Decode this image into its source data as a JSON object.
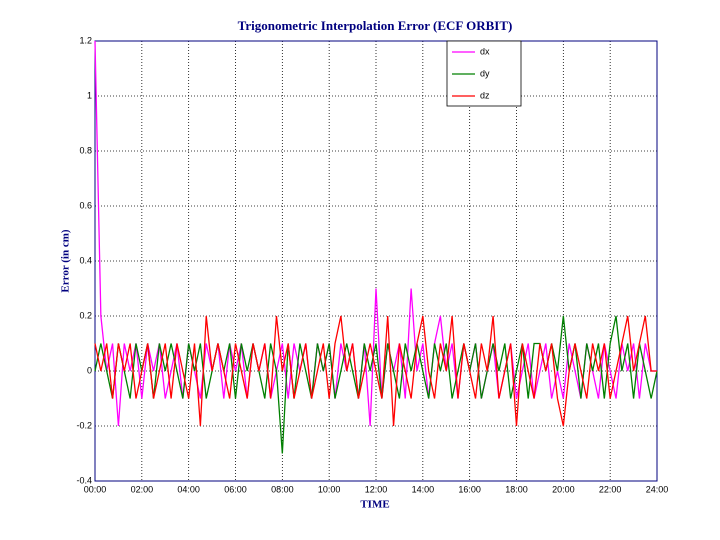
{
  "chart_data": {
    "type": "line",
    "title": "Trigonometric Interpolation Error (ECF ORBIT)",
    "xlabel": "TIME",
    "ylabel": "Error (in cm)",
    "x": [
      0,
      0.25,
      0.5,
      0.75,
      1,
      1.25,
      1.5,
      1.75,
      2,
      2.25,
      2.5,
      2.75,
      3,
      3.25,
      3.5,
      3.75,
      4,
      4.25,
      4.5,
      4.75,
      5,
      5.25,
      5.5,
      5.75,
      6,
      6.25,
      6.5,
      6.75,
      7,
      7.25,
      7.5,
      7.75,
      8,
      8.25,
      8.5,
      8.75,
      9,
      9.25,
      9.5,
      9.75,
      10,
      10.25,
      10.5,
      10.75,
      11,
      11.25,
      11.5,
      11.75,
      12,
      12.25,
      12.5,
      12.75,
      13,
      13.25,
      13.5,
      13.75,
      14,
      14.25,
      14.5,
      14.75,
      15,
      15.25,
      15.5,
      15.75,
      16,
      16.25,
      16.5,
      16.75,
      17,
      17.25,
      17.5,
      17.75,
      18,
      18.25,
      18.5,
      18.75,
      19,
      19.25,
      19.5,
      19.75,
      20,
      20.25,
      20.5,
      20.75,
      21,
      21.25,
      21.5,
      21.75,
      22,
      22.25,
      22.5,
      22.75,
      23,
      23.25,
      23.5,
      23.75,
      24
    ],
    "series": [
      {
        "name": "dx",
        "color": "#ff00ff",
        "values": [
          1.2,
          0.2,
          0,
          0.1,
          -0.2,
          0.1,
          0,
          0.1,
          -0.1,
          0.1,
          0,
          0.1,
          -0.1,
          0,
          0.1,
          -0.1,
          0.1,
          0,
          -0.1,
          0.1,
          0,
          0.1,
          -0.1,
          0.1,
          0,
          0.1,
          -0.1,
          0.1,
          0,
          0.1,
          -0.1,
          0,
          0.1,
          -0.1,
          0.1,
          0,
          0.1,
          -0.1,
          0.1,
          0,
          0.1,
          -0.1,
          0.1,
          0,
          0.1,
          -0.1,
          0.1,
          -0.2,
          0.3,
          -0.1,
          0.1,
          0,
          0.1,
          -0.1,
          0.3,
          0,
          0.1,
          -0.1,
          0.1,
          0.2,
          0,
          0.1,
          -0.1,
          0.1,
          0,
          0.1,
          -0.1,
          0,
          0.1,
          -0.1,
          0,
          0.1,
          -0.1,
          0,
          0.1,
          -0.1,
          0,
          0.1,
          -0.1,
          0,
          -0.1,
          0.1,
          0,
          -0.1,
          0.1,
          0,
          -0.1,
          0.1,
          0,
          -0.1,
          0.1,
          0,
          0.1,
          -0.1,
          0.1,
          0,
          0
        ]
      },
      {
        "name": "dy",
        "color": "#008000",
        "values": [
          0,
          0.1,
          0,
          -0.1,
          0.1,
          0,
          -0.1,
          0.1,
          0,
          0.1,
          -0.1,
          0.1,
          0,
          0.1,
          0,
          -0.1,
          0.1,
          0,
          0.1,
          -0.1,
          0,
          0.1,
          0,
          0.1,
          -0.1,
          0.1,
          0,
          0.1,
          0,
          -0.1,
          0.1,
          0,
          -0.3,
          0.1,
          -0.1,
          0.1,
          0,
          -0.1,
          0.1,
          0,
          0.1,
          -0.1,
          0,
          0.1,
          0,
          -0.1,
          0.1,
          0,
          0.1,
          -0.1,
          0.1,
          0,
          -0.1,
          0.1,
          0,
          0.1,
          0,
          -0.1,
          0.1,
          0,
          0.1,
          -0.1,
          0,
          0.1,
          0,
          0.1,
          -0.1,
          0,
          0.1,
          0,
          0.1,
          -0.1,
          0,
          0.1,
          -0.1,
          0.1,
          0.1,
          0,
          0.1,
          0,
          0.2,
          0,
          0.1,
          -0.1,
          0.1,
          0,
          0.1,
          -0.1,
          0.1,
          0.2,
          0,
          0.1,
          -0.1,
          0.1,
          0,
          -0.1,
          0
        ]
      },
      {
        "name": "dz",
        "color": "#ff0000",
        "values": [
          0.1,
          0,
          0.1,
          -0.1,
          0.1,
          0,
          0.1,
          -0.1,
          0,
          0.1,
          -0.1,
          0,
          0.1,
          -0.1,
          0.1,
          0,
          -0.1,
          0.1,
          -0.2,
          0.2,
          0,
          0.1,
          0,
          -0.1,
          0.1,
          0,
          -0.1,
          0.1,
          0,
          0.1,
          -0.1,
          0.2,
          0,
          0.1,
          -0.1,
          0,
          0.1,
          -0.1,
          0,
          0.1,
          -0.1,
          0.1,
          0.2,
          0,
          0.1,
          -0.1,
          0,
          0.1,
          0,
          -0.1,
          0.2,
          -0.2,
          0.1,
          0,
          -0.1,
          0.1,
          0.2,
          0,
          -0.1,
          0.1,
          0,
          0.2,
          -0.1,
          0.1,
          0,
          -0.1,
          0.1,
          0,
          0.2,
          -0.1,
          0,
          0.1,
          -0.2,
          0.1,
          0,
          -0.1,
          0.1,
          0,
          0.1,
          -0.1,
          -0.2,
          0,
          0.1,
          0,
          -0.1,
          0.1,
          0,
          0.1,
          -0.1,
          0,
          0.1,
          0.2,
          0,
          0.1,
          0.2,
          0,
          0
        ]
      }
    ],
    "xlim": [
      0,
      24
    ],
    "xticks": [
      {
        "value": 0,
        "label": "00:00"
      },
      {
        "value": 2,
        "label": "02:00"
      },
      {
        "value": 4,
        "label": "04:00"
      },
      {
        "value": 6,
        "label": "06:00"
      },
      {
        "value": 8,
        "label": "08:00"
      },
      {
        "value": 10,
        "label": "10:00"
      },
      {
        "value": 12,
        "label": "12:00"
      },
      {
        "value": 14,
        "label": "14:00"
      },
      {
        "value": 16,
        "label": "16:00"
      },
      {
        "value": 18,
        "label": "18:00"
      },
      {
        "value": 20,
        "label": "20:00"
      },
      {
        "value": 22,
        "label": "22:00"
      },
      {
        "value": 24,
        "label": "24:00"
      }
    ],
    "ylim": [
      -0.4,
      1.2
    ],
    "yticks": [
      -0.4,
      -0.2,
      0,
      0.2,
      0.4,
      0.6,
      0.8,
      1,
      1.2
    ],
    "grid": true,
    "legend": "upper right"
  }
}
